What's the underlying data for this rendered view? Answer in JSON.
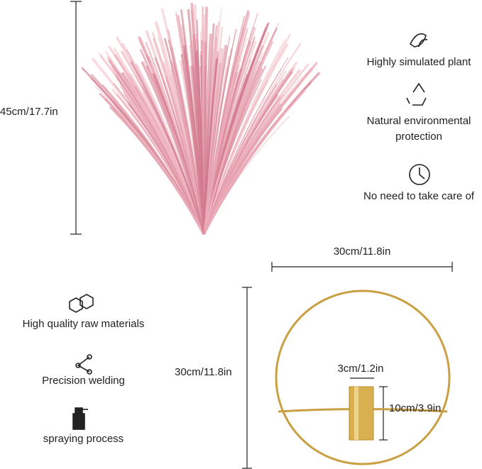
{
  "dimensions": {
    "plant_height": "45cm/17.7in",
    "ring_width": "30cm/11.8in",
    "ring_height": "30cm/11.8in",
    "holder_width": "3cm/1.2in",
    "holder_height": "10cm/3.9in"
  },
  "plant_features": [
    "Highly simulated plant",
    "Natural environmental protection",
    "No need to take care of"
  ],
  "holder_features": [
    "High quality raw materials",
    "Precision welding",
    "spraying process"
  ]
}
